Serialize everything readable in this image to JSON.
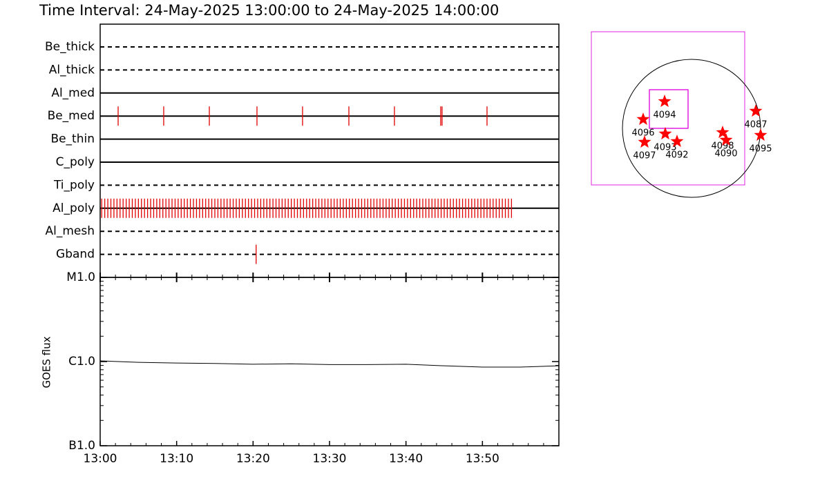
{
  "chart_data": {
    "type": "timeline",
    "title": "Time Interval: 24-May-2025 13:00:00 to 24-May-2025 14:00:00",
    "xlim": [
      0,
      60
    ],
    "xticks": [
      {
        "value": 0,
        "label": "13:00"
      },
      {
        "value": 10,
        "label": "13:10"
      },
      {
        "value": 20,
        "label": "13:20"
      },
      {
        "value": 30,
        "label": "13:30"
      },
      {
        "value": 40,
        "label": "13:40"
      },
      {
        "value": 50,
        "label": "13:50"
      }
    ],
    "event_color": "#e00000",
    "filters": [
      {
        "name": "Be_thick",
        "style": "dashed",
        "events": []
      },
      {
        "name": "Al_thick",
        "style": "dashed",
        "events": []
      },
      {
        "name": "Al_med",
        "style": "solid",
        "events": []
      },
      {
        "name": "Be_med",
        "style": "solid",
        "events": [
          2.35,
          8.31,
          14.28,
          20.51,
          26.47,
          32.53,
          38.49,
          44.54,
          44.72,
          50.6
        ]
      },
      {
        "name": "Be_thin",
        "style": "solid",
        "events": []
      },
      {
        "name": "C_poly",
        "style": "solid",
        "events": []
      },
      {
        "name": "Ti_poly",
        "style": "dashed",
        "events": []
      },
      {
        "name": "Al_poly",
        "style": "solid",
        "events": [
          0.2,
          0.6,
          1.0,
          1.4,
          1.8,
          2.2,
          2.6,
          3.0,
          3.4,
          3.8,
          4.2,
          4.6,
          5.0,
          5.4,
          5.8,
          6.2,
          6.6,
          7.0,
          7.4,
          7.8,
          8.2,
          8.6,
          9.0,
          9.4,
          9.8,
          10.2,
          10.6,
          11.0,
          11.4,
          11.8,
          12.2,
          12.6,
          13.0,
          13.4,
          13.8,
          14.2,
          14.6,
          15.0,
          15.4,
          15.8,
          16.2,
          16.6,
          17.0,
          17.4,
          17.8,
          18.2,
          18.6,
          19.0,
          19.4,
          19.8,
          20.2,
          20.6,
          21.0,
          21.4,
          21.8,
          22.2,
          22.6,
          23.0,
          23.4,
          23.8,
          24.2,
          24.6,
          25.0,
          25.4,
          25.8,
          26.2,
          26.6,
          27.0,
          27.4,
          27.8,
          28.2,
          28.6,
          29.0,
          29.4,
          29.8,
          30.2,
          30.6,
          31.0,
          31.4,
          31.8,
          32.2,
          32.6,
          33.0,
          33.4,
          33.8,
          34.2,
          34.6,
          35.0,
          35.4,
          35.8,
          36.2,
          36.6,
          37.0,
          37.4,
          37.8,
          38.2,
          38.6,
          39.0,
          39.4,
          39.8,
          40.2,
          40.6,
          41.0,
          41.4,
          41.8,
          42.2,
          42.6,
          43.0,
          43.4,
          43.8,
          44.2,
          44.6,
          45.0,
          45.4,
          45.8,
          46.2,
          46.6,
          47.0,
          47.4,
          47.8,
          48.2,
          48.6,
          49.0,
          49.4,
          49.8,
          50.2,
          50.6,
          51.0,
          51.4,
          51.8,
          52.2,
          52.6,
          53.0,
          53.4,
          53.8
        ]
      },
      {
        "name": "Al_mesh",
        "style": "dashed",
        "events": []
      },
      {
        "name": "Gband",
        "style": "dashed",
        "events": [
          20.4
        ]
      }
    ],
    "goes": {
      "ylabel": "GOES flux",
      "log_scale": true,
      "ylim": [
        1e-07,
        1e-05
      ],
      "yticks": [
        {
          "value": 1e-05,
          "label": "M1.0"
        },
        {
          "value": 1e-06,
          "label": "C1.0"
        },
        {
          "value": 1e-07,
          "label": "B1.0"
        }
      ],
      "x": [
        0,
        5,
        10,
        15,
        20,
        25,
        30,
        35,
        40,
        45,
        50,
        55,
        60
      ],
      "values": [
        1.02e-06,
        9.8e-07,
        9.6e-07,
        9.5e-07,
        9.3e-07,
        9.4e-07,
        9.2e-07,
        9.2e-07,
        9.3e-07,
        8.9e-07,
        8.6e-07,
        8.6e-07,
        8.9e-07
      ],
      "color": "#000000"
    },
    "regions": {
      "color": "#ff0000",
      "items": [
        {
          "label": "4094",
          "x": -374,
          "y": 374
        },
        {
          "label": "4096",
          "x": -672,
          "y": 125
        },
        {
          "label": "4093",
          "x": -365,
          "y": -77
        },
        {
          "label": "4092",
          "x": -202,
          "y": -182
        },
        {
          "label": "4097",
          "x": -653,
          "y": -192
        },
        {
          "label": "4098",
          "x": 432,
          "y": -58
        },
        {
          "label": "4090",
          "x": 480,
          "y": -163
        },
        {
          "label": "4087",
          "x": 893,
          "y": 240
        },
        {
          "label": "4095",
          "x": 960,
          "y": -96
        }
      ]
    }
  }
}
